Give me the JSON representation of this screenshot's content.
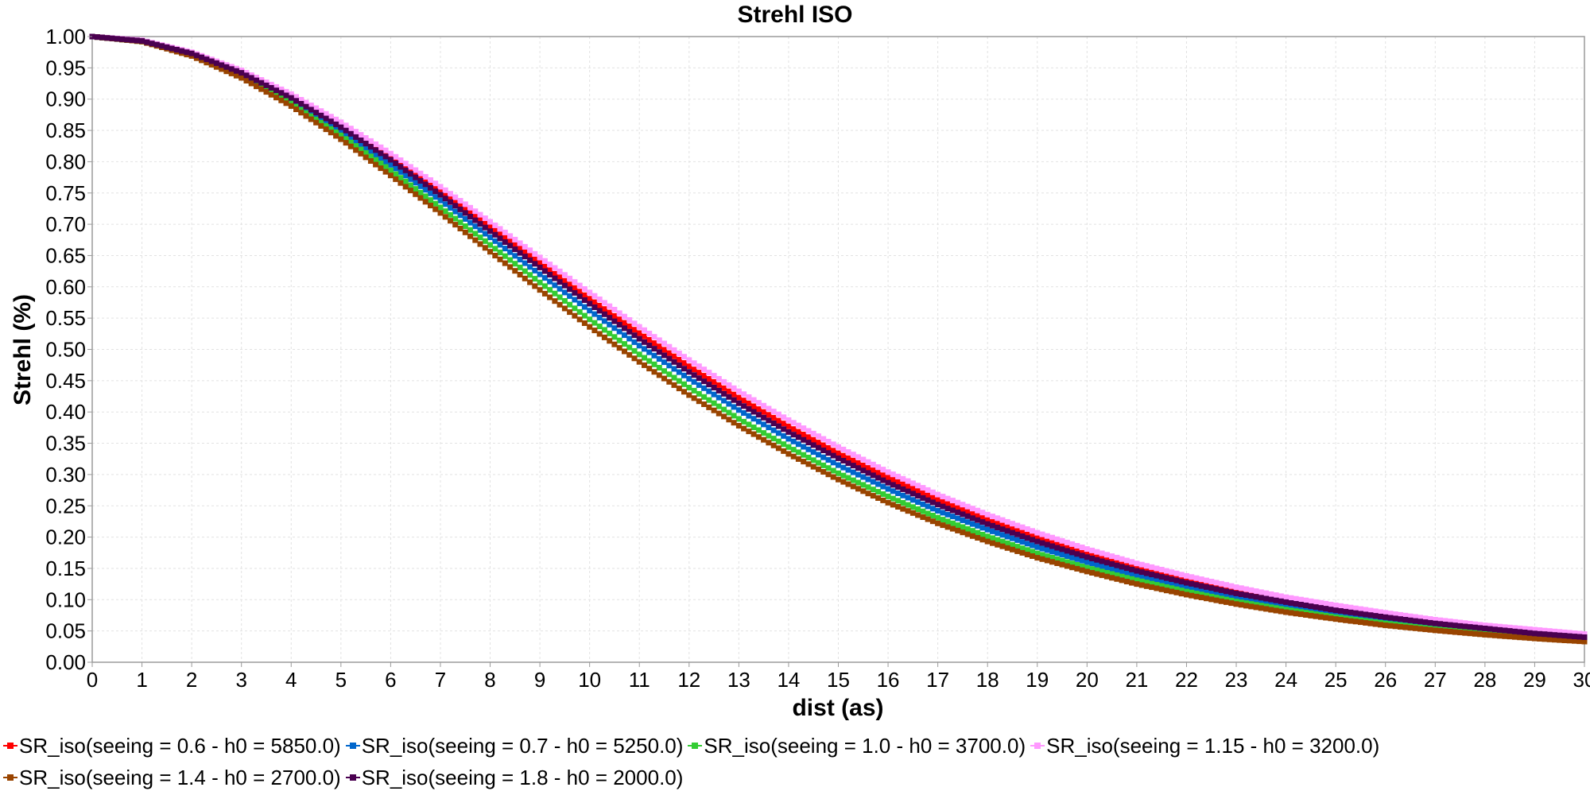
{
  "chart_data": {
    "type": "line",
    "title": "Strehl ISO",
    "xlabel": "dist (as)",
    "ylabel": "Strehl (%)",
    "xlim": [
      0,
      30
    ],
    "ylim": [
      0,
      1
    ],
    "x_ticks": [
      "0",
      "1",
      "2",
      "3",
      "4",
      "5",
      "6",
      "7",
      "8",
      "9",
      "10",
      "11",
      "12",
      "13",
      "14",
      "15",
      "16",
      "17",
      "18",
      "19",
      "20",
      "21",
      "22",
      "23",
      "24",
      "25",
      "26",
      "27",
      "28",
      "29",
      "30"
    ],
    "y_ticks": [
      "0.00",
      "0.05",
      "0.10",
      "0.15",
      "0.20",
      "0.25",
      "0.30",
      "0.35",
      "0.40",
      "0.45",
      "0.50",
      "0.55",
      "0.60",
      "0.65",
      "0.70",
      "0.75",
      "0.80",
      "0.85",
      "0.90",
      "0.95",
      "1.00"
    ],
    "grid": true,
    "legend_position": "bottom",
    "marker": "square",
    "x": [
      0,
      1,
      2,
      3,
      4,
      5,
      6,
      7,
      8,
      9,
      10,
      11,
      12,
      13,
      14,
      15,
      16,
      17,
      18,
      19,
      20,
      21,
      22,
      23,
      24,
      25,
      26,
      27,
      28,
      29,
      30
    ],
    "series": [
      {
        "name": "SR_iso(seeing = 0.6 - h0 = 5850.0)",
        "color": "#ff0000",
        "values": [
          1.0,
          0.993,
          0.974,
          0.944,
          0.905,
          0.859,
          0.808,
          0.753,
          0.696,
          0.638,
          0.581,
          0.526,
          0.473,
          0.423,
          0.377,
          0.334,
          0.295,
          0.26,
          0.228,
          0.2,
          0.175,
          0.152,
          0.133,
          0.116,
          0.101,
          0.087,
          0.076,
          0.066,
          0.057,
          0.05,
          0.043
        ]
      },
      {
        "name": "SR_iso(seeing = 0.7 - h0 = 5250.0)",
        "color": "#0066cc",
        "values": [
          1.0,
          0.993,
          0.972,
          0.94,
          0.898,
          0.849,
          0.795,
          0.738,
          0.679,
          0.62,
          0.562,
          0.506,
          0.453,
          0.403,
          0.357,
          0.315,
          0.277,
          0.242,
          0.212,
          0.184,
          0.16,
          0.139,
          0.12,
          0.104,
          0.09,
          0.078,
          0.067,
          0.058,
          0.05,
          0.043,
          0.037
        ]
      },
      {
        "name": "SR_iso(seeing = 1.0 - h0 = 3700.0)",
        "color": "#33cc33",
        "values": [
          1.0,
          0.992,
          0.971,
          0.937,
          0.893,
          0.842,
          0.786,
          0.727,
          0.667,
          0.607,
          0.548,
          0.492,
          0.439,
          0.389,
          0.344,
          0.302,
          0.265,
          0.231,
          0.201,
          0.174,
          0.151,
          0.131,
          0.113,
          0.097,
          0.084,
          0.072,
          0.062,
          0.053,
          0.046,
          0.039,
          0.034
        ]
      },
      {
        "name": "SR_iso(seeing = 1.15 - h0 = 3200.0)",
        "color": "#ff99ff",
        "values": [
          1.0,
          0.994,
          0.975,
          0.946,
          0.908,
          0.863,
          0.813,
          0.76,
          0.704,
          0.647,
          0.591,
          0.536,
          0.483,
          0.433,
          0.387,
          0.344,
          0.304,
          0.268,
          0.236,
          0.207,
          0.181,
          0.158,
          0.138,
          0.12,
          0.104,
          0.091,
          0.079,
          0.068,
          0.059,
          0.052,
          0.045
        ]
      },
      {
        "name": "SR_iso(seeing = 1.4 - h0 = 2700.0)",
        "color": "#994400",
        "values": [
          1.0,
          0.992,
          0.969,
          0.934,
          0.889,
          0.836,
          0.778,
          0.718,
          0.656,
          0.595,
          0.536,
          0.48,
          0.427,
          0.378,
          0.333,
          0.292,
          0.255,
          0.222,
          0.193,
          0.167,
          0.145,
          0.125,
          0.108,
          0.093,
          0.08,
          0.069,
          0.059,
          0.051,
          0.044,
          0.038,
          0.033
        ]
      },
      {
        "name": "SR_iso(seeing = 1.8 - h0 = 2000.0)",
        "color": "#4a0050",
        "values": [
          1.0,
          0.993,
          0.973,
          0.942,
          0.902,
          0.855,
          0.803,
          0.747,
          0.689,
          0.631,
          0.573,
          0.517,
          0.464,
          0.414,
          0.368,
          0.326,
          0.287,
          0.252,
          0.221,
          0.193,
          0.168,
          0.146,
          0.127,
          0.11,
          0.096,
          0.083,
          0.072,
          0.062,
          0.054,
          0.046,
          0.04
        ]
      }
    ]
  }
}
